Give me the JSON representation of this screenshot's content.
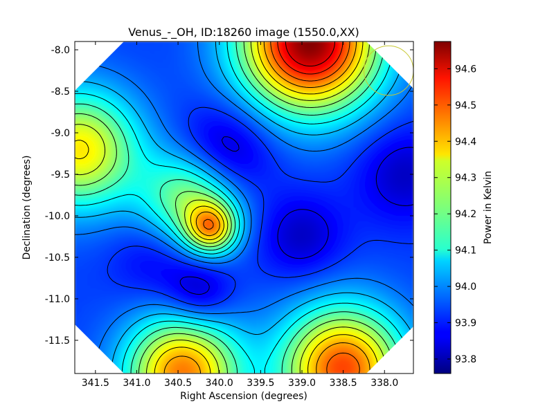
{
  "chart_data": {
    "type": "heatmap",
    "title": "Venus_-_OH, ID:18260 image (1550.0,XX)",
    "xlabel": "Right Ascension (degrees)",
    "ylabel": "Declination (degrees)",
    "colorbar_label": "Power in Kelvin",
    "xlim": [
      341.75,
      337.65
    ],
    "ylim": [
      -11.9,
      -7.9
    ],
    "x_ticks": [
      "341.5",
      "341.0",
      "340.5",
      "340.0",
      "339.5",
      "339.0",
      "338.5",
      "338.0"
    ],
    "x_tick_values": [
      341.5,
      341.0,
      340.5,
      340.0,
      339.5,
      339.0,
      338.5,
      338.0
    ],
    "y_ticks": [
      "-8.0",
      "-8.5",
      "-9.0",
      "-9.5",
      "-10.0",
      "-10.5",
      "-11.0",
      "-11.5"
    ],
    "y_tick_values": [
      -8.0,
      -8.5,
      -9.0,
      -9.5,
      -10.0,
      -10.5,
      -11.0,
      -11.5
    ],
    "colorbar_range": [
      93.76,
      94.675
    ],
    "colorbar_ticks": [
      "93.8",
      "93.9",
      "94.0",
      "94.1",
      "94.2",
      "94.3",
      "94.4",
      "94.5",
      "94.6"
    ],
    "colorbar_tick_values": [
      93.8,
      93.9,
      94.0,
      94.1,
      94.2,
      94.3,
      94.4,
      94.5,
      94.6
    ],
    "colormap": "jet",
    "contour_color": "#000000",
    "beam_circle": {
      "ra": 337.95,
      "dec": -8.25,
      "radius_deg": 0.3,
      "color": "#c8c832"
    },
    "features": [
      {
        "ra": 338.9,
        "dec": -7.9,
        "value": 94.67,
        "kind": "peak"
      },
      {
        "ra": 340.45,
        "dec": -11.9,
        "value": 94.45,
        "kind": "peak"
      },
      {
        "ra": 338.5,
        "dec": -11.85,
        "value": 94.5,
        "kind": "peak"
      },
      {
        "ra": 341.7,
        "dec": -9.2,
        "value": 94.35,
        "kind": "peak"
      },
      {
        "ra": 340.1,
        "dec": -10.15,
        "value": 94.3,
        "kind": "peak"
      },
      {
        "ra": 340.35,
        "dec": -9.8,
        "value": 94.25,
        "kind": "peak"
      },
      {
        "ra": 339.95,
        "dec": -9.25,
        "value": 93.78,
        "kind": "trough"
      },
      {
        "ra": 340.25,
        "dec": -10.95,
        "value": 93.8,
        "kind": "trough"
      },
      {
        "ra": 339.0,
        "dec": -10.25,
        "value": 93.82,
        "kind": "trough"
      },
      {
        "ra": 337.75,
        "dec": -9.5,
        "value": 93.82,
        "kind": "trough"
      },
      {
        "ra": 340.75,
        "dec": -10.5,
        "value": 93.85,
        "kind": "trough"
      }
    ]
  }
}
